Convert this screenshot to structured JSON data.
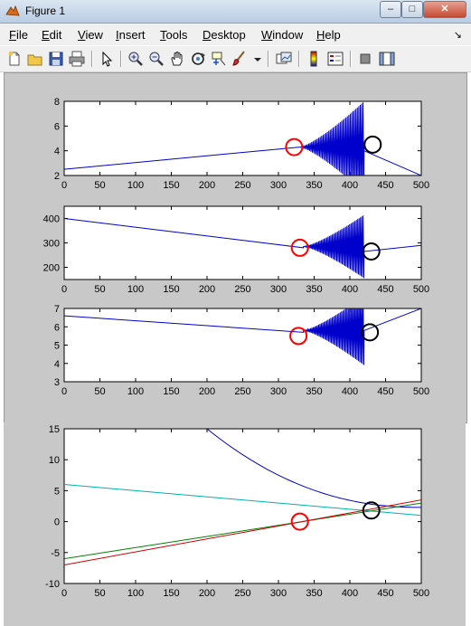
{
  "window": {
    "title": "Figure 1",
    "minimize_label": "–",
    "maximize_label": "□",
    "close_label": "✕"
  },
  "menu": {
    "items": [
      {
        "label": "File",
        "u": "F",
        "rest": "ile"
      },
      {
        "label": "Edit",
        "u": "E",
        "rest": "dit"
      },
      {
        "label": "View",
        "u": "V",
        "rest": "iew"
      },
      {
        "label": "Insert",
        "u": "I",
        "rest": "nsert"
      },
      {
        "label": "Tools",
        "u": "T",
        "rest": "ools"
      },
      {
        "label": "Desktop",
        "u": "D",
        "rest": "esktop"
      },
      {
        "label": "Window",
        "u": "W",
        "rest": "indow"
      },
      {
        "label": "Help",
        "u": "H",
        "rest": "elp"
      }
    ],
    "dock_arrow": "↘"
  },
  "toolbar": {
    "icons": [
      "new-figure-icon",
      "open-file-icon",
      "save-icon",
      "print-icon",
      "edit-plot-icon",
      "zoom-in-icon",
      "zoom-out-icon",
      "pan-icon",
      "rotate-3d-icon",
      "data-cursor-icon",
      "brush-icon",
      "link-plot-icon",
      "colorbar-icon",
      "legend-icon",
      "hide-plot-tools-icon",
      "show-plot-tools-icon"
    ]
  },
  "chart_data": [
    {
      "type": "line",
      "xlim": [
        0,
        500
      ],
      "ylim": [
        2,
        8
      ],
      "xticks": [
        "0",
        "50",
        "100",
        "150",
        "200",
        "250",
        "300",
        "350",
        "400",
        "450",
        "500"
      ],
      "yticks": [
        "2",
        "4",
        "6",
        "8"
      ],
      "series": [
        {
          "color": "#0000cc",
          "trend": {
            "x": [
              0,
              330
            ],
            "y": [
              2.5,
              4.3
            ]
          },
          "oscillation": {
            "x_start": 330,
            "x_end": 420,
            "center": 4.3,
            "max_amp": 3.7
          },
          "tail": {
            "x": [
              420,
              500
            ],
            "y": [
              4.0,
              2.0
            ]
          }
        }
      ],
      "annotations": [
        {
          "kind": "red-circle",
          "x": 322,
          "y": 4.3
        },
        {
          "kind": "black-circle",
          "x": 432,
          "y": 4.5
        }
      ]
    },
    {
      "type": "line",
      "xlim": [
        0,
        500
      ],
      "ylim": [
        150,
        450
      ],
      "xticks": [
        "0",
        "50",
        "100",
        "150",
        "200",
        "250",
        "300",
        "350",
        "400",
        "450",
        "500"
      ],
      "yticks": [
        "200",
        "300",
        "400"
      ],
      "series": [
        {
          "color": "#0000cc",
          "trend": {
            "x": [
              0,
              335
            ],
            "y": [
              400,
              280
            ]
          },
          "oscillation": {
            "x_start": 335,
            "x_end": 420,
            "center": 285,
            "max_amp": 130
          },
          "tail": {
            "x": [
              420,
              500
            ],
            "y": [
              265,
              290
            ]
          }
        }
      ],
      "annotations": [
        {
          "kind": "red-circle",
          "x": 330,
          "y": 280
        },
        {
          "kind": "black-circle",
          "x": 430,
          "y": 265
        }
      ]
    },
    {
      "type": "line",
      "xlim": [
        0,
        500
      ],
      "ylim": [
        3,
        7
      ],
      "xticks": [
        "0",
        "50",
        "100",
        "150",
        "200",
        "250",
        "300",
        "350",
        "400",
        "450",
        "500"
      ],
      "yticks": [
        "3",
        "4",
        "5",
        "6",
        "7"
      ],
      "series": [
        {
          "color": "#0000cc",
          "trend": {
            "x": [
              0,
              335
            ],
            "y": [
              6.6,
              5.7
            ]
          },
          "oscillation": {
            "x_start": 335,
            "x_end": 420,
            "center": 5.8,
            "max_amp": 1.9
          },
          "tail": {
            "x": [
              420,
              500
            ],
            "y": [
              5.8,
              7.0
            ]
          }
        }
      ],
      "annotations": [
        {
          "kind": "red-circle",
          "x": 328,
          "y": 5.5
        },
        {
          "kind": "black-circle",
          "x": 428,
          "y": 5.7
        }
      ]
    },
    {
      "type": "line",
      "xlim": [
        0,
        500
      ],
      "ylim": [
        -10,
        15
      ],
      "xticks": [
        "0",
        "50",
        "100",
        "150",
        "200",
        "250",
        "300",
        "350",
        "400",
        "450",
        "500"
      ],
      "yticks": [
        "-10",
        "-5",
        "0",
        "5",
        "10",
        "15"
      ],
      "series": [
        {
          "color": "#0000cc",
          "curve": "decay",
          "x_start": 200,
          "x_end": 500,
          "y_at_start": 15,
          "y_at_end": 2.3
        },
        {
          "color": "#00b0b0",
          "x": [
            0,
            500
          ],
          "y": [
            6.0,
            1.0
          ]
        },
        {
          "color": "#008000",
          "x": [
            0,
            500
          ],
          "y": [
            -6.0,
            3.0
          ]
        },
        {
          "color": "#cc0000",
          "x": [
            0,
            500
          ],
          "y": [
            -7.0,
            3.5
          ]
        }
      ],
      "annotations": [
        {
          "kind": "red-circle",
          "x": 330,
          "y": 0
        },
        {
          "kind": "black-circle",
          "x": 430,
          "y": 1.8
        }
      ]
    }
  ]
}
